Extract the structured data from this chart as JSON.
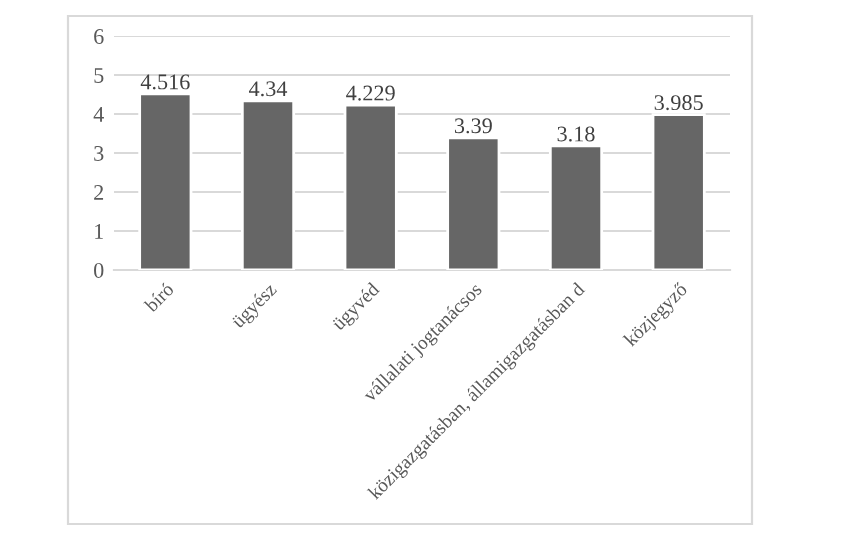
{
  "chart_data": {
    "type": "bar",
    "categories": [
      "bíró",
      "ügyész",
      "ügyvéd",
      "vállalati jogtanácsos",
      "közigazgatásban, államigazgatásban d",
      "közjegyző"
    ],
    "values": [
      4.516,
      4.34,
      4.229,
      3.39,
      3.18,
      3.985
    ],
    "color": "#666666",
    "ylim": [
      0,
      6
    ],
    "yticks": [
      0,
      1,
      2,
      3,
      4,
      5,
      6
    ],
    "grid": "y",
    "data_labels": true
  }
}
